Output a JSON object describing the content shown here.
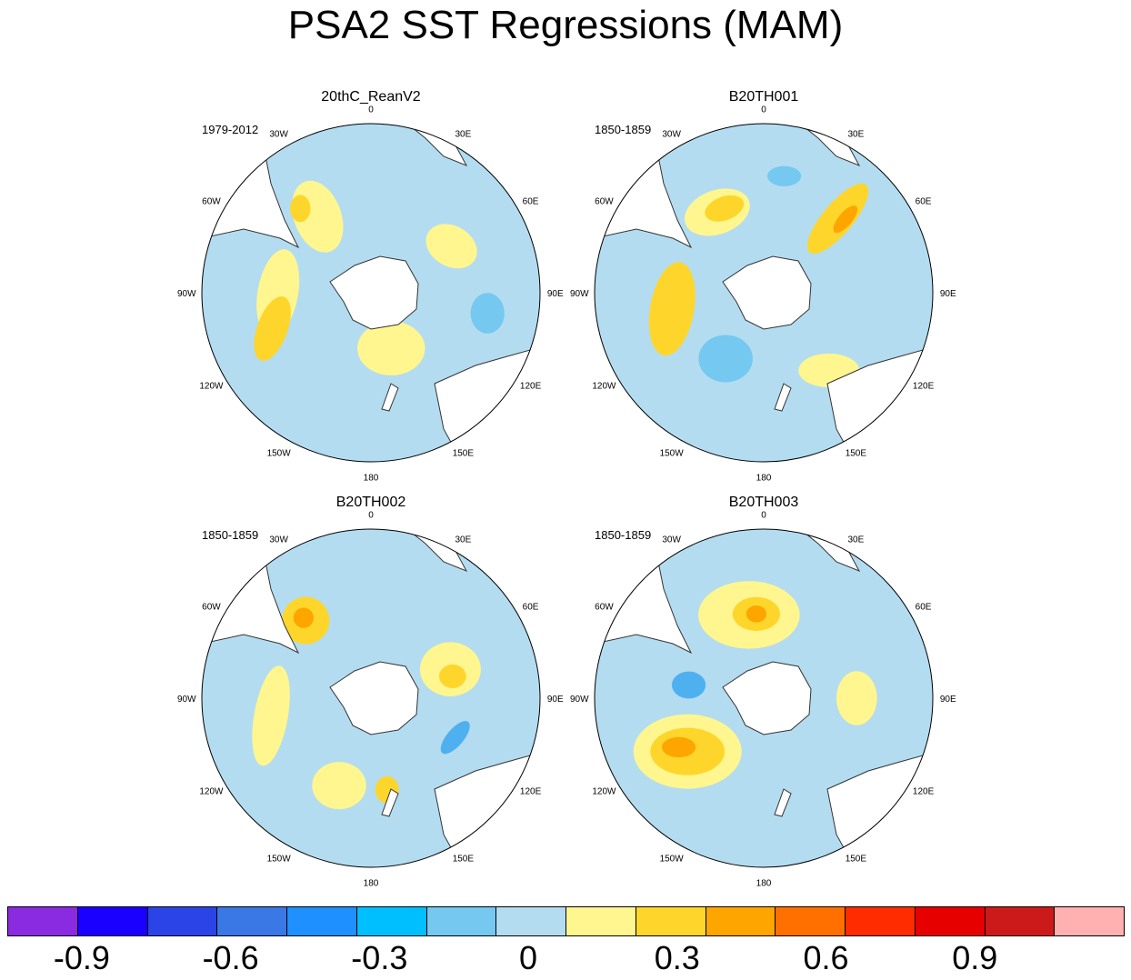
{
  "figure": {
    "title": "PSA2 SST Regressions (MAM)"
  },
  "colors": {
    "land": "#ffffff",
    "coast": "#333333",
    "border": "#000000"
  },
  "panels": [
    {
      "title": "20thC_ReanV2",
      "period": "1979-2012",
      "base": "#b3dcf0",
      "lon_labels": [
        "0",
        "30E",
        "60E",
        "90E",
        "120E",
        "150E",
        "180",
        "150W",
        "120W",
        "90W",
        "60W",
        "30W"
      ],
      "features": [
        {
          "lon": -90,
          "r": 0.55,
          "rx": 0.12,
          "ry": 0.26,
          "rot": 10,
          "color": "#fff68f"
        },
        {
          "lon": -110,
          "r": 0.62,
          "rx": 0.09,
          "ry": 0.2,
          "rot": 20,
          "color": "#fed62b"
        },
        {
          "lon": -35,
          "r": 0.55,
          "rx": 0.14,
          "ry": 0.22,
          "rot": -20,
          "color": "#fff68f"
        },
        {
          "lon": -40,
          "r": 0.65,
          "rx": 0.06,
          "ry": 0.08,
          "rot": 0,
          "color": "#fed62b"
        },
        {
          "lon": 160,
          "r": 0.35,
          "rx": 0.2,
          "ry": 0.16,
          "rot": 0,
          "color": "#fff68f"
        },
        {
          "lon": 60,
          "r": 0.55,
          "rx": 0.16,
          "ry": 0.12,
          "rot": 30,
          "color": "#fff68f"
        },
        {
          "lon": 100,
          "r": 0.7,
          "rx": 0.1,
          "ry": 0.12,
          "rot": 0,
          "color": "#75c8f0"
        }
      ]
    },
    {
      "title": "B20TH001",
      "period": "1850-1859",
      "base": "#b3dcf0",
      "lon_labels": [
        "0",
        "30E",
        "60E",
        "90E",
        "120E",
        "150E",
        "180",
        "150W",
        "120W",
        "90W",
        "60W",
        "30W"
      ],
      "features": [
        {
          "lon": -30,
          "r": 0.55,
          "rx": 0.2,
          "ry": 0.13,
          "rot": -20,
          "color": "#fff68f"
        },
        {
          "lon": -25,
          "r": 0.55,
          "rx": 0.12,
          "ry": 0.07,
          "rot": -20,
          "color": "#fed62b"
        },
        {
          "lon": 45,
          "r": 0.62,
          "rx": 0.09,
          "ry": 0.26,
          "rot": 40,
          "color": "#fed62b"
        },
        {
          "lon": 48,
          "r": 0.65,
          "rx": 0.04,
          "ry": 0.1,
          "rot": 40,
          "color": "#fea500"
        },
        {
          "lon": -100,
          "r": 0.55,
          "rx": 0.13,
          "ry": 0.28,
          "rot": 10,
          "color": "#fed62b"
        },
        {
          "lon": 140,
          "r": 0.6,
          "rx": 0.18,
          "ry": 0.1,
          "rot": 0,
          "color": "#fff68f"
        },
        {
          "lon": -150,
          "r": 0.45,
          "rx": 0.16,
          "ry": 0.14,
          "rot": 0,
          "color": "#75c8f0"
        },
        {
          "lon": 10,
          "r": 0.7,
          "rx": 0.1,
          "ry": 0.06,
          "rot": 0,
          "color": "#75c8f0"
        }
      ]
    },
    {
      "title": "B20TH002",
      "period": "1850-1859",
      "base": "#b3dcf0",
      "lon_labels": [
        "0",
        "30E",
        "60E",
        "90E",
        "120E",
        "150E",
        "180",
        "150W",
        "120W",
        "90W",
        "60W",
        "30W"
      ],
      "features": [
        {
          "lon": -40,
          "r": 0.6,
          "rx": 0.14,
          "ry": 0.14,
          "rot": 0,
          "color": "#fed62b"
        },
        {
          "lon": -40,
          "r": 0.62,
          "rx": 0.06,
          "ry": 0.06,
          "rot": 0,
          "color": "#fea500"
        },
        {
          "lon": 70,
          "r": 0.5,
          "rx": 0.18,
          "ry": 0.16,
          "rot": 0,
          "color": "#fff68f"
        },
        {
          "lon": 75,
          "r": 0.5,
          "rx": 0.08,
          "ry": 0.07,
          "rot": 0,
          "color": "#fed62b"
        },
        {
          "lon": -160,
          "r": 0.55,
          "rx": 0.16,
          "ry": 0.14,
          "rot": 0,
          "color": "#fff68f"
        },
        {
          "lon": 170,
          "r": 0.55,
          "rx": 0.07,
          "ry": 0.08,
          "rot": 0,
          "color": "#fed62b"
        },
        {
          "lon": 115,
          "r": 0.55,
          "rx": 0.05,
          "ry": 0.12,
          "rot": 40,
          "color": "#4fb0f0"
        },
        {
          "lon": -100,
          "r": 0.6,
          "rx": 0.1,
          "ry": 0.3,
          "rot": 10,
          "color": "#fff68f"
        }
      ]
    },
    {
      "title": "B20TH003",
      "period": "1850-1859",
      "base": "#b3dcf0",
      "lon_labels": [
        "0",
        "30E",
        "60E",
        "90E",
        "120E",
        "150E",
        "180",
        "150W",
        "120W",
        "90W",
        "60W",
        "30W"
      ],
      "features": [
        {
          "lon": -10,
          "r": 0.5,
          "rx": 0.3,
          "ry": 0.2,
          "rot": 0,
          "color": "#fff68f"
        },
        {
          "lon": -5,
          "r": 0.5,
          "rx": 0.14,
          "ry": 0.1,
          "rot": 0,
          "color": "#fed62b"
        },
        {
          "lon": -5,
          "r": 0.5,
          "rx": 0.06,
          "ry": 0.05,
          "rot": 0,
          "color": "#fea500"
        },
        {
          "lon": -125,
          "r": 0.55,
          "rx": 0.32,
          "ry": 0.22,
          "rot": 0,
          "color": "#fff68f"
        },
        {
          "lon": -125,
          "r": 0.55,
          "rx": 0.22,
          "ry": 0.14,
          "rot": 0,
          "color": "#fed62b"
        },
        {
          "lon": -120,
          "r": 0.58,
          "rx": 0.1,
          "ry": 0.06,
          "rot": 0,
          "color": "#fea500"
        },
        {
          "lon": -80,
          "r": 0.45,
          "rx": 0.1,
          "ry": 0.08,
          "rot": 0,
          "color": "#4fb0f0"
        },
        {
          "lon": 90,
          "r": 0.55,
          "rx": 0.12,
          "ry": 0.16,
          "rot": 0,
          "color": "#fff68f"
        }
      ]
    }
  ],
  "colorbar": {
    "colors": [
      "#8a2be2",
      "#1a00ff",
      "#2a44e8",
      "#3a78e6",
      "#1e90ff",
      "#00bfff",
      "#75c8f0",
      "#b3dcf0",
      "#fff68f",
      "#fed62b",
      "#fea500",
      "#ff7000",
      "#ff2c00",
      "#e60000",
      "#cc1a1a",
      "#ffb0b0"
    ],
    "labels": [
      "-0.9",
      "-0.6",
      "-0.3",
      "0",
      "0.3",
      "0.6",
      "0.9"
    ],
    "label_values": [
      -0.9,
      -0.6,
      -0.3,
      0,
      0.3,
      0.6,
      0.9
    ],
    "min": -1.05,
    "max": 1.2,
    "step": 0.15
  }
}
